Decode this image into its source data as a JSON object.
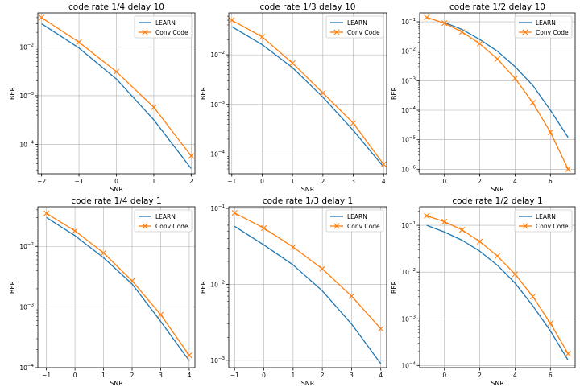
{
  "figure": {
    "colors": {
      "learn": "#1f77b4",
      "conv": "#ff7f0e",
      "grid": "#b0b0b0"
    }
  },
  "chart_data": [
    {
      "type": "line",
      "title": "code rate 1/4 delay 10",
      "xlabel": "SNR",
      "ylabel": "BER",
      "yscale": "log",
      "xlim": [
        -2.1,
        2.1
      ],
      "ylim": [
        2.5e-05,
        0.05
      ],
      "xticks": [
        -2,
        -1,
        0,
        1,
        2
      ],
      "xtick_labels": [
        "−2",
        "−1",
        "0",
        "1",
        "2"
      ],
      "yticks": [
        0.0001,
        0.001,
        0.01
      ],
      "ytick_labels": [
        "10^-4",
        "10^-3",
        "10^-2"
      ],
      "legend": "top-right",
      "grid": true,
      "series": [
        {
          "name": "LEARN",
          "x": [
            -2,
            -1,
            0,
            1,
            2
          ],
          "values": [
            0.03,
            0.0095,
            0.0022,
            0.00032,
            3.2e-05
          ]
        },
        {
          "name": "Conv Code",
          "x": [
            -2,
            -1,
            0,
            1,
            2
          ],
          "values": [
            0.04,
            0.0125,
            0.0031,
            0.00058,
            5.8e-05
          ]
        }
      ]
    },
    {
      "type": "line",
      "title": "code rate 1/3 delay 10",
      "xlabel": "SNR",
      "ylabel": "BER",
      "yscale": "log",
      "xlim": [
        -1.1,
        4.1
      ],
      "ylim": [
        4e-05,
        0.07
      ],
      "xticks": [
        -1,
        0,
        1,
        2,
        3,
        4
      ],
      "xtick_labels": [
        "−1",
        "0",
        "1",
        "2",
        "3",
        "4"
      ],
      "yticks": [
        0.0001,
        0.001,
        0.01
      ],
      "ytick_labels": [
        "10^-4",
        "10^-3",
        "10^-2"
      ],
      "legend": "top-right",
      "grid": true,
      "series": [
        {
          "name": "LEARN",
          "x": [
            -1,
            0,
            1,
            2,
            3,
            4
          ],
          "values": [
            0.037,
            0.016,
            0.0055,
            0.0014,
            0.0003,
            5.5e-05
          ]
        },
        {
          "name": "Conv Code",
          "x": [
            -1,
            0,
            1,
            2,
            3,
            4
          ],
          "values": [
            0.05,
            0.023,
            0.0068,
            0.0017,
            0.00042,
            6.2e-05
          ]
        }
      ]
    },
    {
      "type": "line",
      "title": "code rate 1/2 delay 10",
      "xlabel": "SNR",
      "ylabel": "BER",
      "yscale": "log",
      "xlim": [
        -1.4,
        7.4
      ],
      "ylim": [
        7e-07,
        0.2
      ],
      "xticks": [
        0,
        2,
        4,
        6
      ],
      "xtick_labels": [
        "0",
        "2",
        "4",
        "6"
      ],
      "yticks": [
        1e-06,
        1e-05,
        0.0001,
        0.001,
        0.01,
        0.1
      ],
      "ytick_labels": [
        "10^-6",
        "10^-5",
        "10^-4",
        "10^-3",
        "10^-2",
        "10^-1"
      ],
      "legend": "top-right",
      "grid": true,
      "series": [
        {
          "name": "LEARN",
          "x": [
            0,
            1,
            2,
            3,
            4,
            5,
            6,
            7
          ],
          "values": [
            0.095,
            0.055,
            0.025,
            0.01,
            0.003,
            0.0007,
            0.0001,
            1.2e-05
          ]
        },
        {
          "name": "Conv Code",
          "x": [
            -1,
            0,
            1,
            2,
            3,
            4,
            5,
            6,
            7
          ],
          "values": [
            0.14,
            0.09,
            0.045,
            0.018,
            0.0055,
            0.0012,
            0.00018,
            1.8e-05,
            1e-06
          ]
        }
      ]
    },
    {
      "type": "line",
      "title": "code rate 1/4 delay 1",
      "xlabel": "SNR",
      "ylabel": "BER",
      "yscale": "log",
      "xlim": [
        -1.3,
        4.2
      ],
      "ylim": [
        0.0001,
        0.045
      ],
      "xticks": [
        -1,
        0,
        1,
        2,
        3,
        4
      ],
      "xtick_labels": [
        "−1",
        "0",
        "1",
        "2",
        "3",
        "4"
      ],
      "yticks": [
        0.0001,
        0.001,
        0.01
      ],
      "ytick_labels": [
        "10^-4",
        "10^-3",
        "10^-2"
      ],
      "legend": "top-right",
      "grid": true,
      "series": [
        {
          "name": "LEARN",
          "x": [
            -1,
            0,
            1,
            2,
            3,
            4
          ],
          "values": [
            0.03,
            0.015,
            0.0065,
            0.0024,
            0.00058,
            0.00013
          ]
        },
        {
          "name": "Conv Code",
          "x": [
            -1,
            0,
            1,
            2,
            3,
            4
          ],
          "values": [
            0.035,
            0.018,
            0.0078,
            0.0027,
            0.00075,
            0.00016
          ]
        }
      ]
    },
    {
      "type": "line",
      "title": "code rate 1/3 delay 1",
      "xlabel": "SNR",
      "ylabel": "BER",
      "yscale": "log",
      "xlim": [
        -1.2,
        4.2
      ],
      "ylim": [
        0.0008,
        0.105
      ],
      "xticks": [
        -1,
        0,
        1,
        2,
        3,
        4
      ],
      "xtick_labels": [
        "−1",
        "0",
        "1",
        "2",
        "3",
        "4"
      ],
      "yticks": [
        0.001,
        0.01,
        0.1
      ],
      "ytick_labels": [
        "10^-3",
        "10^-2",
        "10^-1"
      ],
      "legend": "top-right",
      "grid": true,
      "series": [
        {
          "name": "LEARN",
          "x": [
            -1,
            0,
            1,
            2,
            3,
            4
          ],
          "values": [
            0.058,
            0.033,
            0.018,
            0.0082,
            0.003,
            0.0009
          ]
        },
        {
          "name": "Conv Code",
          "x": [
            -1,
            0,
            1,
            2,
            3,
            4
          ],
          "values": [
            0.087,
            0.055,
            0.031,
            0.016,
            0.007,
            0.0026
          ]
        }
      ]
    },
    {
      "type": "line",
      "title": "code rate 1/2 delay 1",
      "xlabel": "SNR",
      "ylabel": "BER",
      "yscale": "log",
      "xlim": [
        -1.4,
        7.4
      ],
      "ylim": [
        9e-05,
        0.25
      ],
      "xticks": [
        0,
        2,
        4,
        6
      ],
      "xtick_labels": [
        "0",
        "2",
        "4",
        "6"
      ],
      "yticks": [
        0.0001,
        0.001,
        0.01,
        0.1
      ],
      "ytick_labels": [
        "10^-4",
        "10^-3",
        "10^-2",
        "10^-1"
      ],
      "legend": "top-right",
      "grid": true,
      "series": [
        {
          "name": "LEARN",
          "x": [
            -1,
            0,
            1,
            2,
            3,
            4,
            5,
            6,
            7
          ],
          "values": [
            0.1,
            0.072,
            0.048,
            0.028,
            0.014,
            0.0058,
            0.0019,
            0.00055,
            0.00013
          ]
        },
        {
          "name": "Conv Code",
          "x": [
            -1,
            0,
            1,
            2,
            3,
            4,
            5,
            6,
            7
          ],
          "values": [
            0.16,
            0.12,
            0.08,
            0.045,
            0.022,
            0.009,
            0.003,
            0.0008,
            0.00018
          ]
        }
      ]
    }
  ]
}
